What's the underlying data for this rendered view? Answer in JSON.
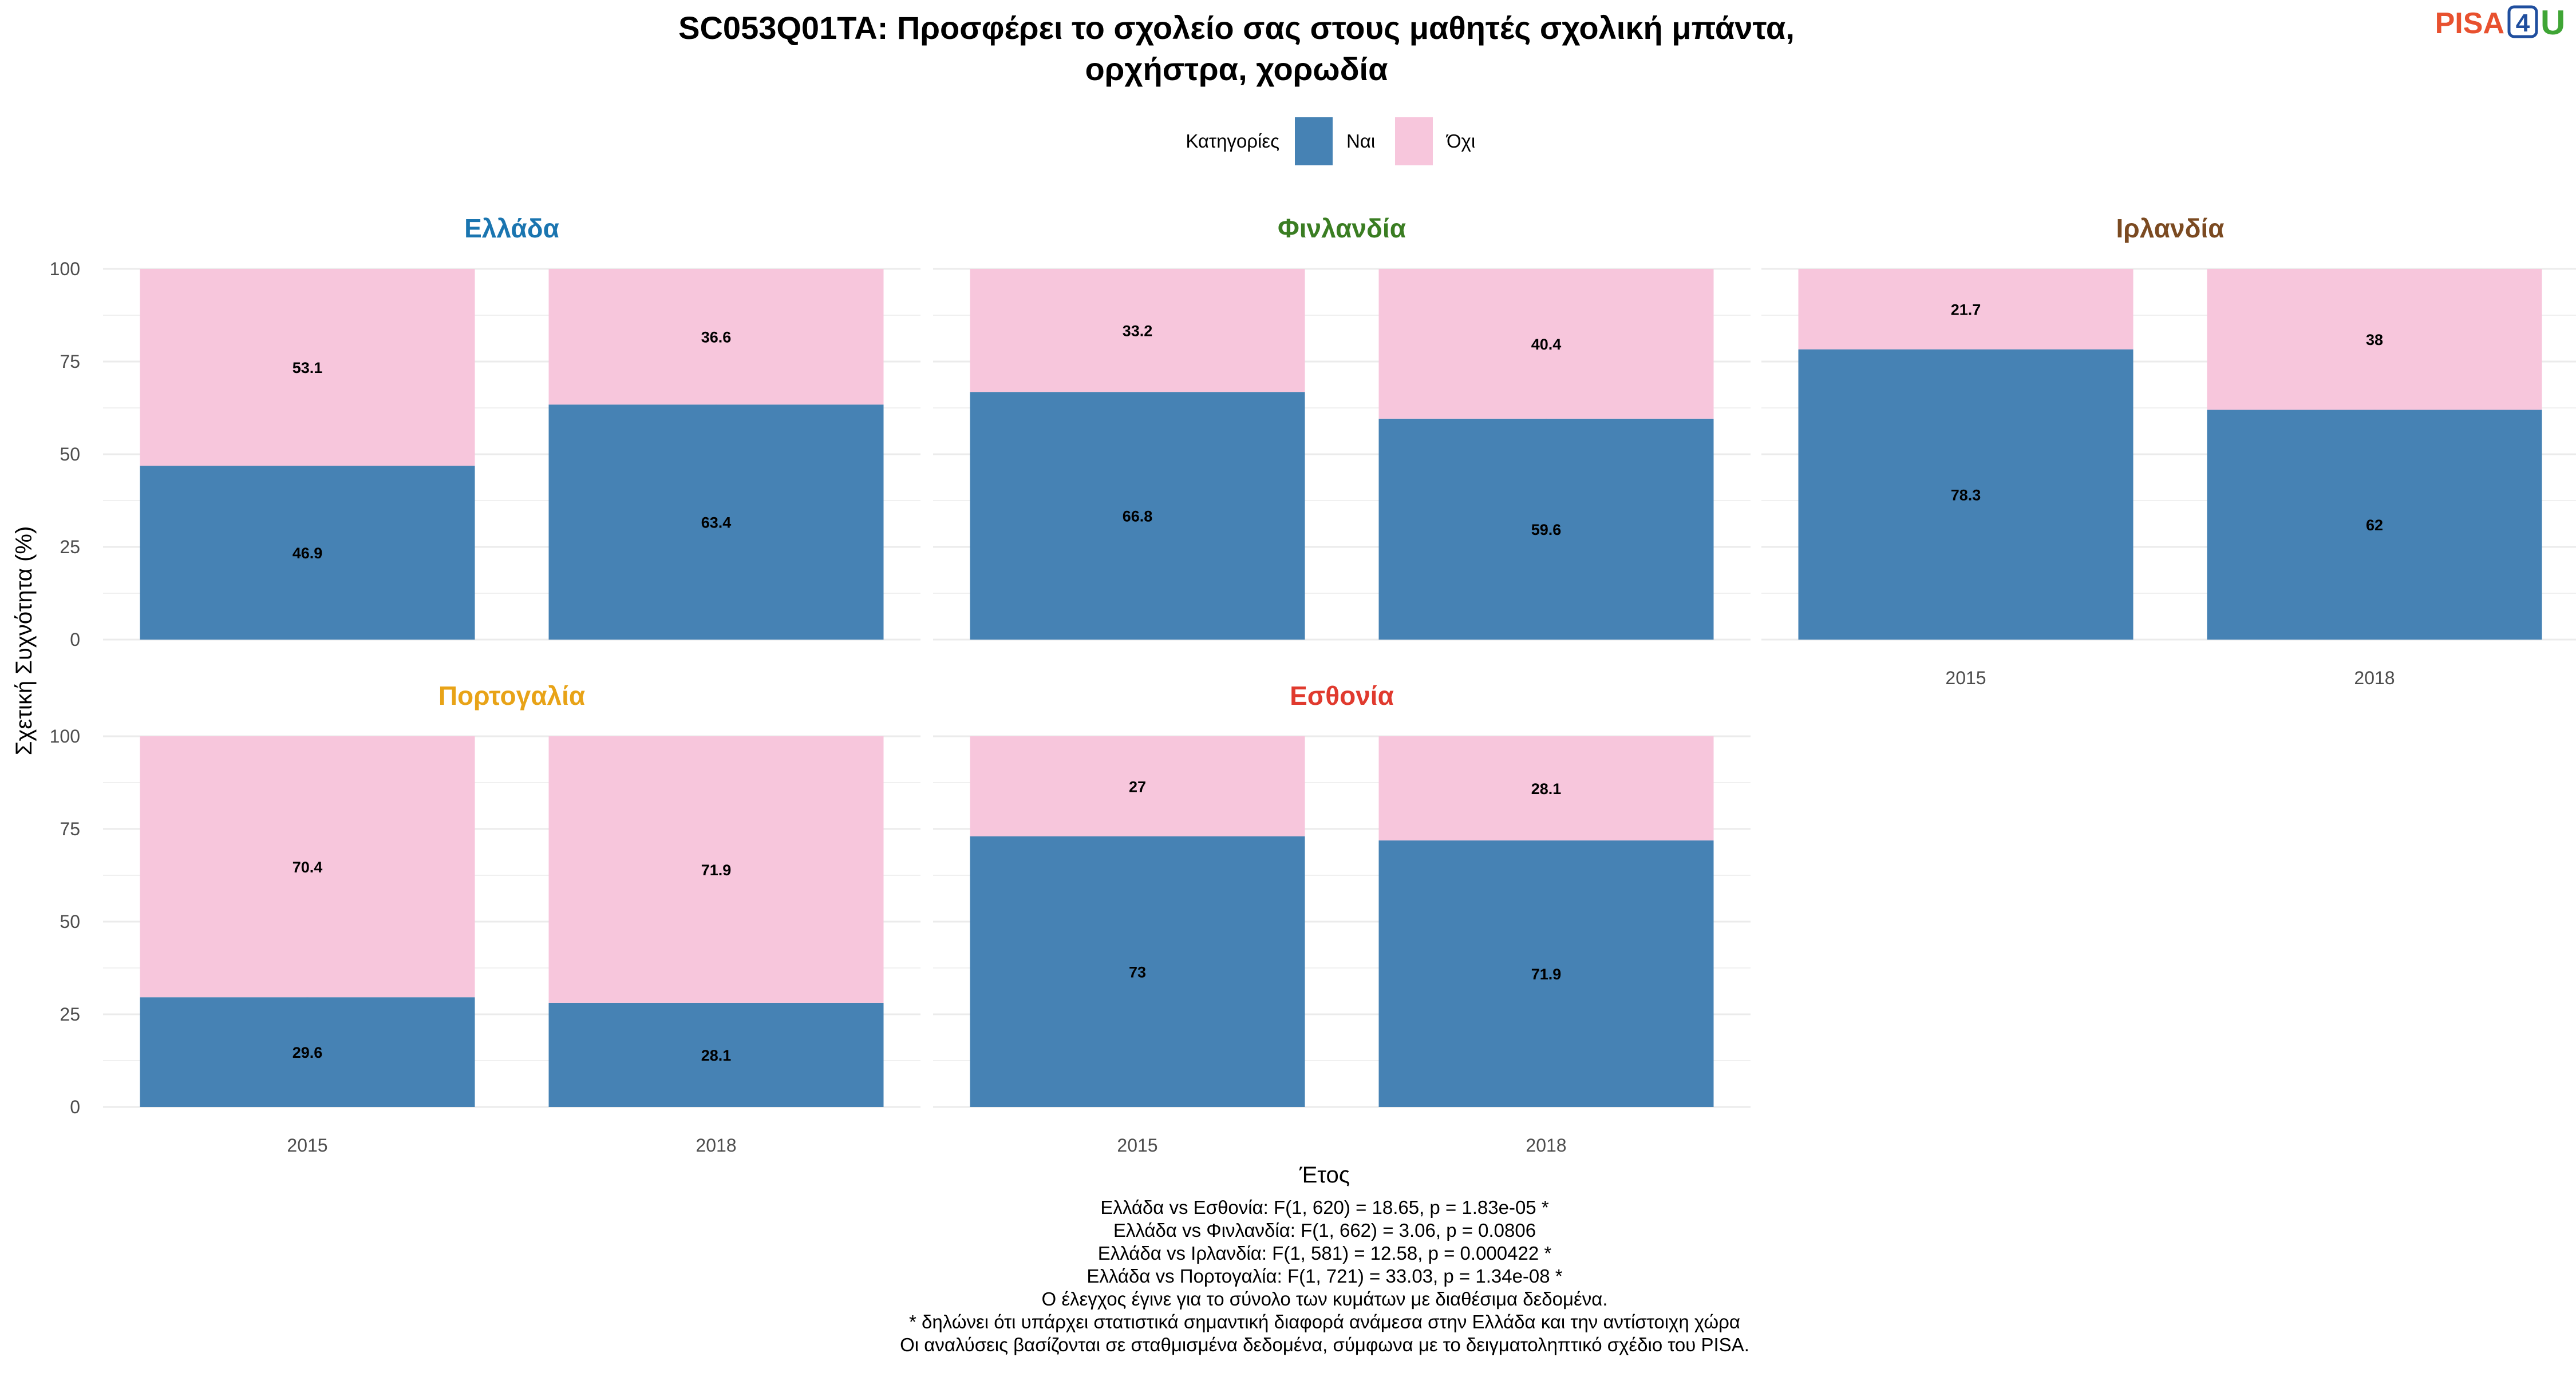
{
  "title_lines": [
    "SC053Q01TA: Προσφέρει το σχολείο σας στους μαθητές σχολική μπάντα,",
    "ορχήστρα, χορωδία"
  ],
  "logo": {
    "pisa": "PISA",
    "four": "4",
    "u": "U",
    "pisa_color": "#e8512f",
    "four_color": "#1f4e9e",
    "u_color": "#3fa535"
  },
  "legend": {
    "title": "Κατηγορίες",
    "position": "top"
  },
  "colors": {
    "yes": "#4682b4",
    "no": "#f7c6dc",
    "grid": "#ebebeb"
  },
  "chart_data": {
    "type": "bar",
    "stacked": true,
    "ylabel": "Σχετική Συχνότητα (%)",
    "xlabel": "Έτος",
    "ylim": [
      0,
      100
    ],
    "y_ticks": [
      0,
      25,
      50,
      75,
      100
    ],
    "categories": [
      "2015",
      "2018"
    ],
    "series_names": [
      "Ναι",
      "Όχι"
    ],
    "facets": [
      {
        "name": "Ελλάδα",
        "color": "#1a75b0",
        "yes": [
          46.9,
          63.4
        ],
        "no": [
          53.1,
          36.6
        ]
      },
      {
        "name": "Φινλανδία",
        "color": "#3a7d22",
        "yes": [
          66.8,
          59.6
        ],
        "no": [
          33.2,
          40.4
        ]
      },
      {
        "name": "Ιρλανδία",
        "color": "#7b4a21",
        "yes": [
          78.3,
          62
        ],
        "no": [
          21.7,
          38
        ]
      },
      {
        "name": "Πορτογαλία",
        "color": "#e8a317",
        "yes": [
          29.6,
          28.1
        ],
        "no": [
          70.4,
          71.9
        ]
      },
      {
        "name": "Εσθονία",
        "color": "#e03a2e",
        "yes": [
          73,
          71.9
        ],
        "no": [
          27,
          28.1
        ]
      }
    ]
  },
  "caption_lines": [
    "Ελλάδα vs Εσθονία: F(1, 620) = 18.65, p = 1.83e-05 *",
    "Ελλάδα vs Φινλανδία: F(1, 662) = 3.06, p = 0.0806",
    "Ελλάδα vs Ιρλανδία: F(1, 581) = 12.58, p = 0.000422 *",
    "Ελλάδα vs Πορτογαλία: F(1, 721) = 33.03, p = 1.34e-08 *",
    "Ο έλεγχος έγινε για το σύνολο των κυμάτων με διαθέσιμα δεδομένα.",
    "* δηλώνει ότι υπάρχει στατιστικά σημαντική διαφορά ανάμεσα στην Ελλάδα και την αντίστοιχη χώρα",
    "Οι αναλύσεις βασίζονται σε σταθμισμένα δεδομένα, σύμφωνα με το δειγματοληπτικό σχέδιο του PISA."
  ]
}
